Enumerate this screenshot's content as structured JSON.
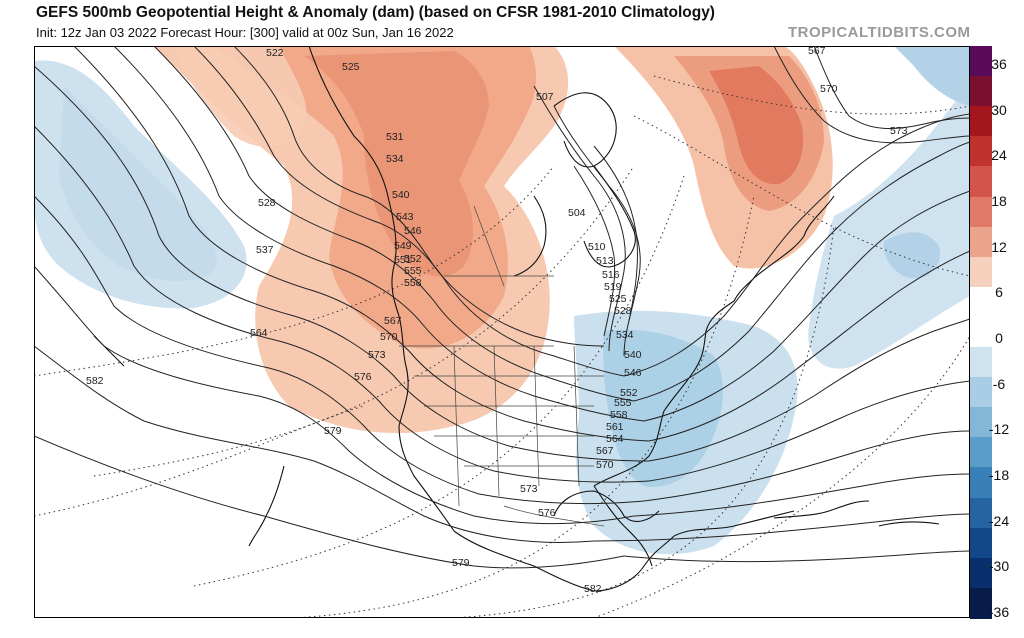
{
  "header": {
    "title": "GEFS 500mb Geopotential Height & Anomaly (dam) (based on CFSR 1981-2010 Climatology)",
    "subtitle": "Init: 12z Jan 03 2022   Forecast Hour: [300]   valid at 00z Sun, Jan 16 2022",
    "brand": "TROPICALTIDBITS.COM"
  },
  "colorbar": {
    "ticks": [
      "36",
      "30",
      "24",
      "18",
      "12",
      "6",
      "0",
      "-6",
      "-12",
      "-18",
      "-24",
      "-30",
      "-36"
    ],
    "colors": [
      "#5a0a5a",
      "#7a0f2f",
      "#a3161d",
      "#c0332c",
      "#d2544a",
      "#e07a67",
      "#eaa58c",
      "#f5d1bd",
      "#ffffff",
      "#ffffff",
      "#cfe2ef",
      "#a9cde4",
      "#82b7d8",
      "#5a9dc9",
      "#3a80b8",
      "#2563a2",
      "#14478a",
      "#0a2f6d",
      "#071c48"
    ]
  },
  "contour_labels": [
    "522",
    "525",
    "528",
    "531",
    "534",
    "537",
    "540",
    "543",
    "546",
    "549",
    "551",
    "552",
    "555",
    "558",
    "564",
    "567",
    "570",
    "573",
    "576",
    "579",
    "582",
    "504",
    "510",
    "513",
    "516",
    "519",
    "525",
    "528",
    "534",
    "540",
    "546",
    "552",
    "555",
    "558",
    "561",
    "564",
    "567",
    "570",
    "573",
    "576",
    "579",
    "582",
    "567",
    "570",
    "573",
    "507"
  ]
}
